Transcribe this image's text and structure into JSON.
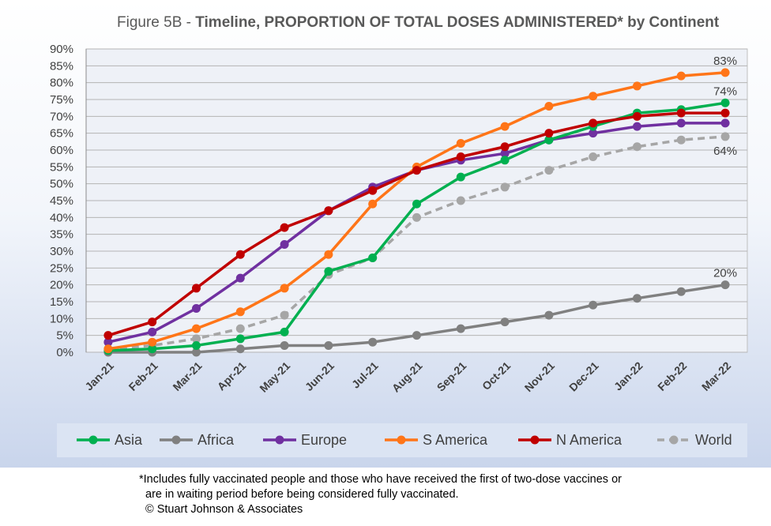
{
  "chart_data": {
    "type": "line",
    "title_prefix": "Figure 5B - ",
    "title_main": "Timeline, PROPORTION OF TOTAL DOSES ADMINISTERED* by Continent",
    "categories": [
      "Jan-21",
      "Feb-21",
      "Mar-21",
      "Apr-21",
      "May-21",
      "Jun-21",
      "Jul-21",
      "Aug-21",
      "Sep-21",
      "Oct-21",
      "Nov-21",
      "Dec-21",
      "Jan-22",
      "Feb-22",
      "Mar-22"
    ],
    "y_ticks": [
      "0%",
      "5%",
      "10%",
      "15%",
      "20%",
      "25%",
      "30%",
      "35%",
      "40%",
      "45%",
      "50%",
      "55%",
      "60%",
      "65%",
      "70%",
      "75%",
      "80%",
      "85%",
      "90%"
    ],
    "ylim": [
      0,
      90
    ],
    "grid": true,
    "legend_position": "bottom",
    "series": [
      {
        "name": "Asia",
        "color": "#00b050",
        "dashed": false,
        "values": [
          0.5,
          1,
          2,
          4,
          6,
          24,
          28,
          44,
          52,
          57,
          63,
          67,
          71,
          72,
          74
        ],
        "end_label": "74%"
      },
      {
        "name": "Africa",
        "color": "#808080",
        "dashed": false,
        "values": [
          0,
          0,
          0,
          1,
          2,
          2,
          3,
          5,
          7,
          9,
          11,
          14,
          16,
          18,
          20
        ],
        "end_label": "20%"
      },
      {
        "name": "Europe",
        "color": "#7030a0",
        "dashed": false,
        "values": [
          3,
          6,
          13,
          22,
          32,
          42,
          49,
          54,
          57,
          59,
          63,
          65,
          67,
          68,
          68
        ],
        "end_label": ""
      },
      {
        "name": "S America",
        "color": "#ff7518",
        "dashed": false,
        "values": [
          1,
          3,
          7,
          12,
          19,
          29,
          44,
          55,
          62,
          67,
          73,
          76,
          79,
          82,
          83
        ],
        "end_label": "83%"
      },
      {
        "name": "N America",
        "color": "#c00000",
        "dashed": false,
        "values": [
          5,
          9,
          19,
          29,
          37,
          42,
          48,
          54,
          58,
          61,
          65,
          68,
          70,
          71,
          71
        ],
        "end_label": ""
      },
      {
        "name": "World",
        "color": "#a6a6a6",
        "dashed": true,
        "values": [
          1,
          2,
          4,
          7,
          11,
          23,
          28,
          40,
          45,
          49,
          54,
          58,
          61,
          63,
          64
        ],
        "end_label": "64%"
      }
    ]
  },
  "footnote": {
    "line1": "*Includes fully vaccinated people and those who have received the first of two-dose vaccines or",
    "line2": "are in waiting period before being considered fully vaccinated.",
    "line3": "© Stuart Johnson & Associates"
  }
}
